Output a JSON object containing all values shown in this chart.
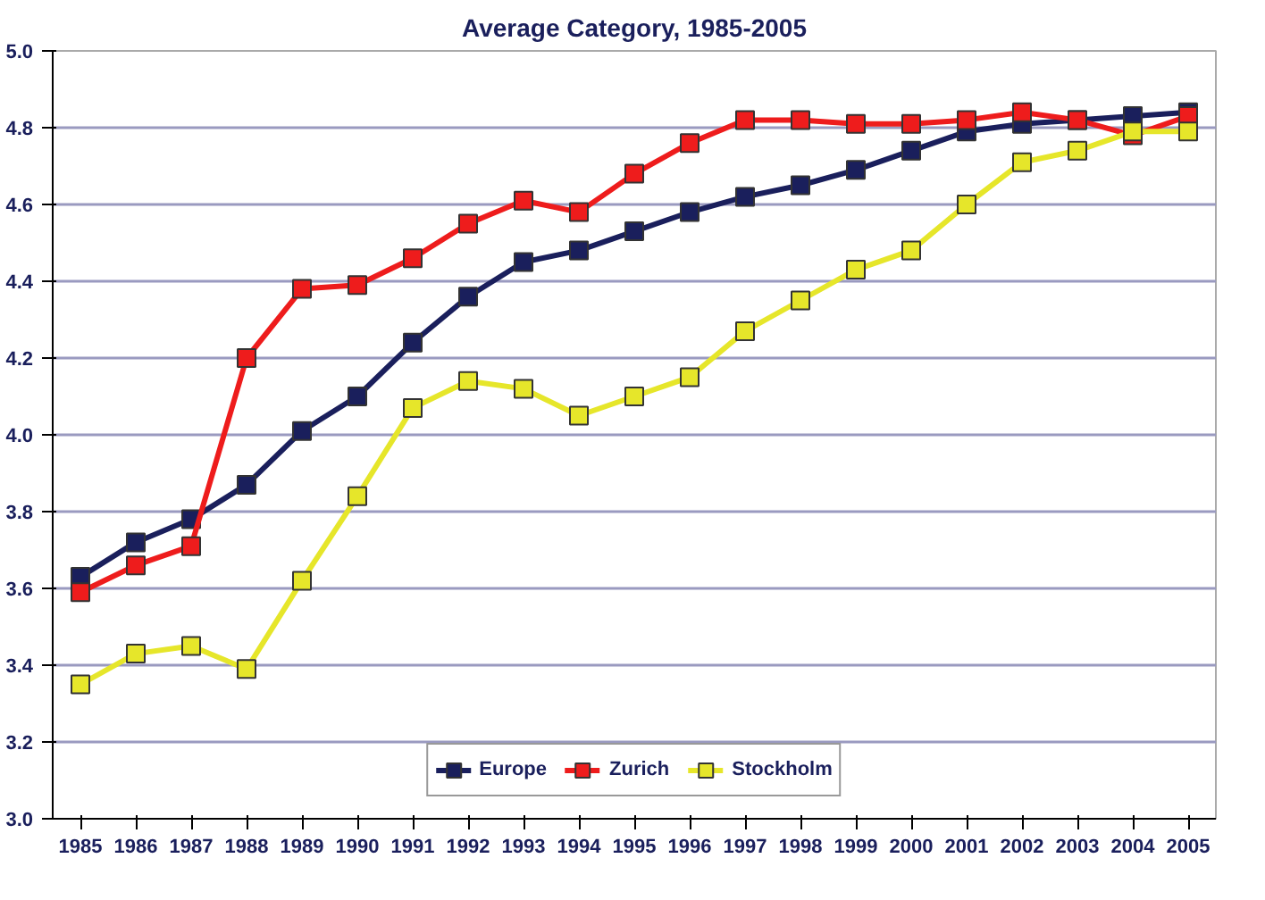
{
  "chart_data": {
    "type": "line",
    "title": "Average Category, 1985-2005",
    "categories": [
      "1985",
      "1986",
      "1987",
      "1988",
      "1989",
      "1990",
      "1991",
      "1992",
      "1993",
      "1994",
      "1995",
      "1996",
      "1997",
      "1998",
      "1999",
      "2000",
      "2001",
      "2002",
      "2003",
      "2004",
      "2005"
    ],
    "series": [
      {
        "name": "Europe",
        "color": "#1a1f5c",
        "values": [
          3.63,
          3.72,
          3.78,
          3.87,
          4.01,
          4.1,
          4.24,
          4.36,
          4.45,
          4.48,
          4.53,
          4.58,
          4.62,
          4.65,
          4.69,
          4.74,
          4.79,
          4.81,
          4.82,
          4.83,
          4.84
        ]
      },
      {
        "name": "Zurich",
        "color": "#ee1c1c",
        "values": [
          3.59,
          3.66,
          3.71,
          4.2,
          4.38,
          4.39,
          4.46,
          4.55,
          4.61,
          4.58,
          4.68,
          4.76,
          4.82,
          4.82,
          4.81,
          4.81,
          4.82,
          4.84,
          4.82,
          4.78,
          4.83
        ]
      },
      {
        "name": "Stockholm",
        "color": "#e6e62a",
        "values": [
          3.35,
          3.43,
          3.45,
          3.39,
          3.62,
          3.84,
          4.07,
          4.14,
          4.12,
          4.05,
          4.1,
          4.15,
          4.27,
          4.35,
          4.43,
          4.48,
          4.6,
          4.71,
          4.74,
          4.79,
          4.79
        ]
      }
    ],
    "ylim": [
      3.0,
      5.0
    ],
    "yticks": [
      {
        "value": 3.0,
        "label": "3.0"
      },
      {
        "value": 3.2,
        "label": "3.2"
      },
      {
        "value": 3.4,
        "label": "3.4"
      },
      {
        "value": 3.6,
        "label": "3.6"
      },
      {
        "value": 3.8,
        "label": "3.8"
      },
      {
        "value": 4.0,
        "label": "4.0"
      },
      {
        "value": 4.2,
        "label": "4.2"
      },
      {
        "value": 4.4,
        "label": "4.4"
      },
      {
        "value": 4.6,
        "label": "4.6"
      },
      {
        "value": 4.8,
        "label": "4.8"
      },
      {
        "value": 5.0,
        "label": "5.0"
      }
    ],
    "grid": "y",
    "legend": "bottom",
    "marker": "square",
    "line_style": "solid"
  }
}
